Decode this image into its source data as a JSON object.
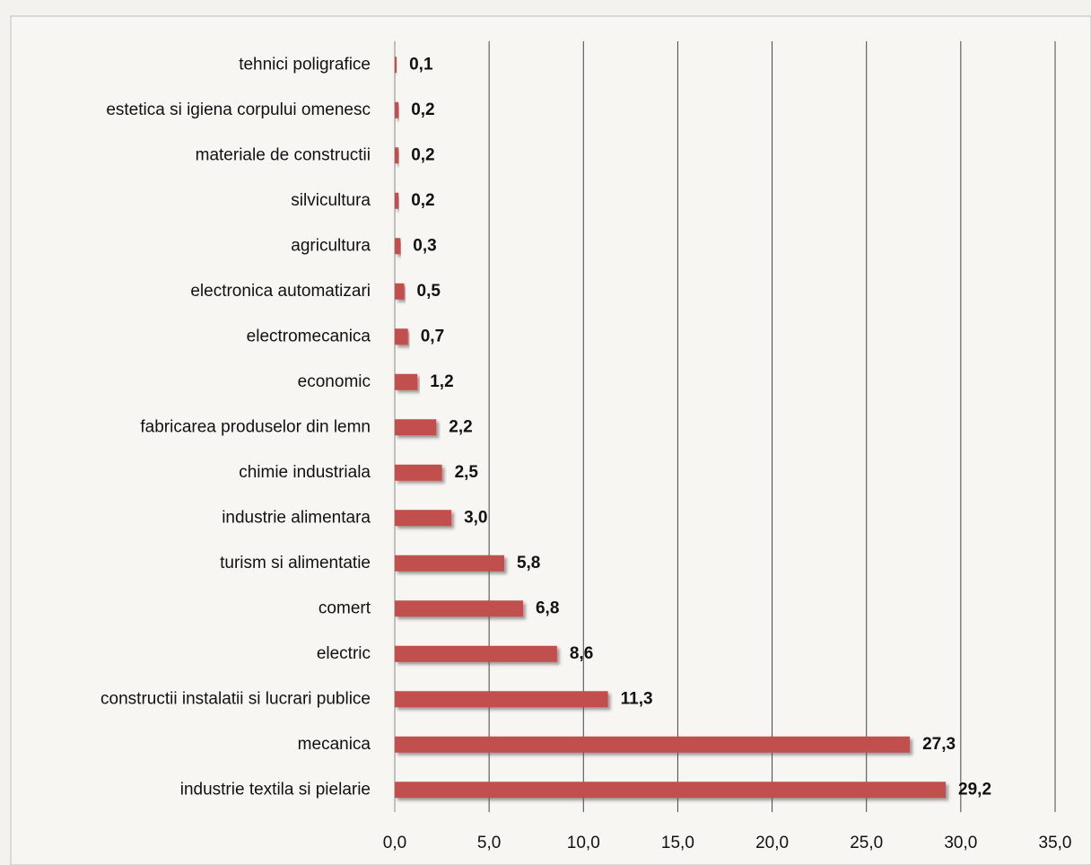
{
  "chart_data": {
    "type": "bar",
    "orientation": "horizontal",
    "categories": [
      "tehnici poligrafice",
      "estetica si igiena corpului omenesc",
      "materiale de constructii",
      "silvicultura",
      "agricultura",
      "electronica automatizari",
      "electromecanica",
      "economic",
      "fabricarea produselor din lemn",
      "chimie industriala",
      "industrie alimentara",
      "turism si alimentatie",
      "comert",
      "electric",
      "constructii instalatii si lucrari publice",
      "mecanica",
      "industrie textila si pielarie"
    ],
    "values": [
      0.1,
      0.2,
      0.2,
      0.2,
      0.3,
      0.5,
      0.7,
      1.2,
      2.2,
      2.5,
      3.0,
      5.8,
      6.8,
      8.6,
      11.3,
      27.3,
      29.2
    ],
    "value_labels": [
      "0,1",
      "0,2",
      "0,2",
      "0,2",
      "0,3",
      "0,5",
      "0,7",
      "1,2",
      "2,2",
      "2,5",
      "3,0",
      "5,8",
      "6,8",
      "8,6",
      "11,3",
      "27,3",
      "29,2"
    ],
    "color": "#c0504d",
    "xlim": [
      0,
      35
    ],
    "xticks": [
      {
        "value": 0,
        "label": "0,0"
      },
      {
        "value": 5,
        "label": "5,0"
      },
      {
        "value": 10,
        "label": "10,0"
      },
      {
        "value": 15,
        "label": "15,0"
      },
      {
        "value": 20,
        "label": "20,0"
      },
      {
        "value": 25,
        "label": "25,0"
      },
      {
        "value": 30,
        "label": "30,0"
      },
      {
        "value": 35,
        "label": "35,0"
      }
    ],
    "grid": true
  }
}
